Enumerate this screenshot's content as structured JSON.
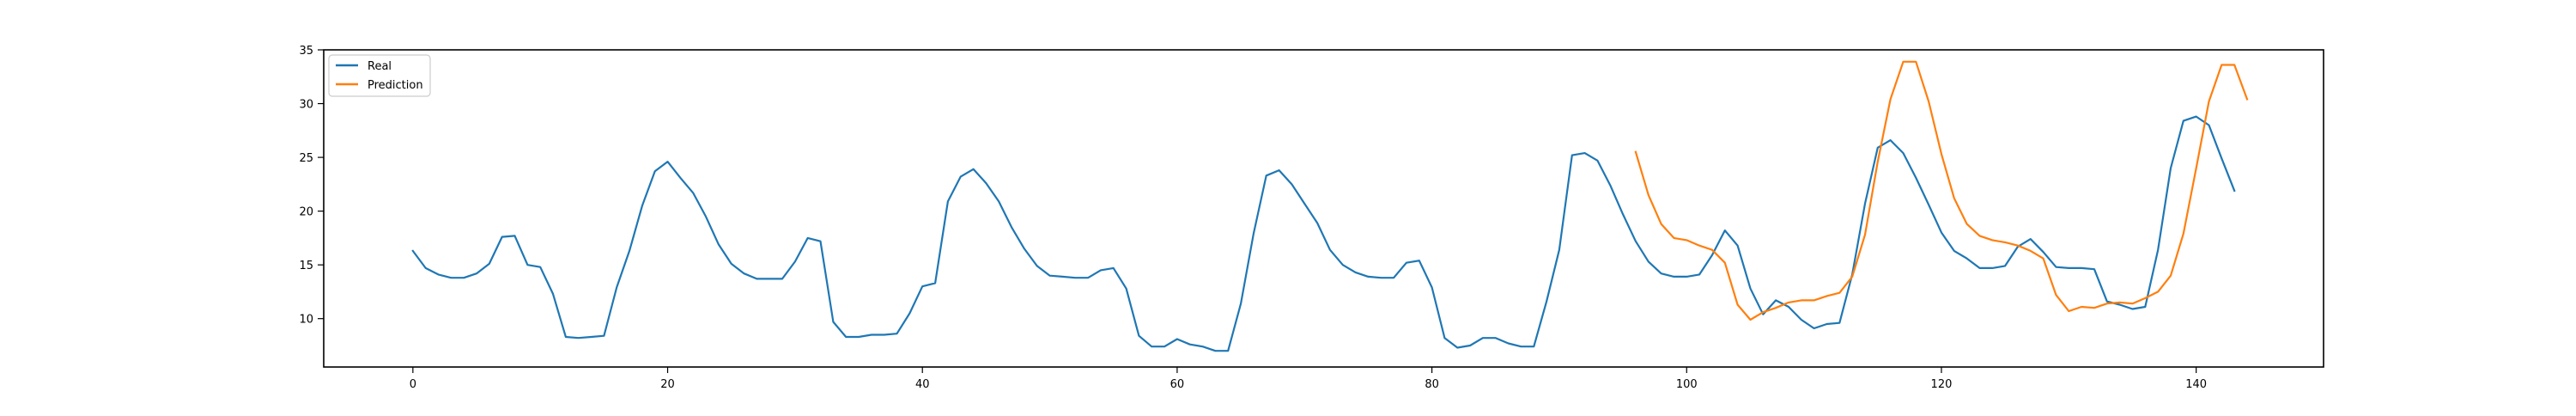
{
  "chart_data": {
    "type": "line",
    "title": "",
    "xlabel": "",
    "ylabel": "",
    "xlim": [
      -7,
      150
    ],
    "ylim": [
      5.5,
      35
    ],
    "x_ticks": [
      0,
      20,
      40,
      60,
      80,
      100,
      120,
      140
    ],
    "y_ticks": [
      10,
      15,
      20,
      25,
      30,
      35
    ],
    "grid": false,
    "legend": {
      "position": "upper-left",
      "entries": [
        "Real",
        "Prediction"
      ]
    },
    "series": [
      {
        "name": "Real",
        "color": "#1f77b4",
        "x_start": 0,
        "values": [
          16.3,
          14.7,
          14.1,
          13.8,
          13.8,
          14.2,
          15.1,
          17.6,
          17.7,
          15.0,
          14.8,
          12.3,
          8.3,
          8.2,
          8.3,
          8.4,
          12.9,
          16.3,
          20.5,
          23.7,
          24.6,
          23.1,
          21.7,
          19.5,
          16.9,
          15.1,
          14.2,
          13.7,
          13.7,
          13.7,
          15.3,
          17.5,
          17.2,
          9.7,
          8.3,
          8.3,
          8.5,
          8.5,
          8.6,
          10.5,
          13.0,
          13.3,
          20.9,
          23.2,
          23.9,
          22.6,
          20.9,
          18.5,
          16.5,
          14.9,
          14.0,
          13.9,
          13.8,
          13.8,
          14.5,
          14.7,
          12.8,
          8.4,
          7.4,
          7.4,
          8.1,
          7.6,
          7.4,
          7.0,
          7.0,
          11.4,
          17.9,
          23.3,
          23.8,
          22.5,
          20.7,
          18.9,
          16.4,
          15.0,
          14.3,
          13.9,
          13.8,
          13.8,
          15.2,
          15.4,
          12.9,
          8.2,
          7.3,
          7.5,
          8.2,
          8.2,
          7.7,
          7.4,
          7.4,
          11.6,
          16.4,
          25.2,
          25.4,
          24.7,
          22.4,
          19.7,
          17.2,
          15.3,
          14.2,
          13.9,
          13.9,
          14.1,
          15.9,
          18.2,
          16.8,
          12.8,
          10.4,
          11.7,
          11.1,
          9.9,
          9.1,
          9.5,
          9.6,
          14.1,
          20.7,
          25.9,
          26.6,
          25.4,
          23.1,
          20.6,
          18.0,
          16.3,
          15.6,
          14.7,
          14.7,
          14.9,
          16.7,
          17.4,
          16.2,
          14.8,
          14.7,
          14.7,
          14.6,
          11.6,
          11.3,
          10.9,
          11.1,
          16.4,
          24.0,
          28.4,
          28.8,
          28.0,
          24.9,
          21.9
        ]
      },
      {
        "name": "Prediction",
        "color": "#ff7f0e",
        "x_start": 96,
        "values": [
          25.5,
          21.5,
          18.8,
          17.5,
          17.3,
          16.8,
          16.4,
          15.2,
          11.3,
          9.9,
          10.6,
          11.0,
          11.5,
          11.7,
          11.7,
          12.1,
          12.4,
          13.9,
          17.8,
          24.6,
          30.4,
          33.9,
          33.9,
          30.2,
          25.3,
          21.2,
          18.8,
          17.7,
          17.3,
          17.1,
          16.8,
          16.3,
          15.6,
          12.2,
          10.7,
          11.1,
          11.0,
          11.4,
          11.5,
          11.4,
          11.9,
          12.5,
          14.0,
          17.9,
          24.0,
          30.2,
          33.6,
          33.6,
          30.4
        ]
      }
    ]
  }
}
